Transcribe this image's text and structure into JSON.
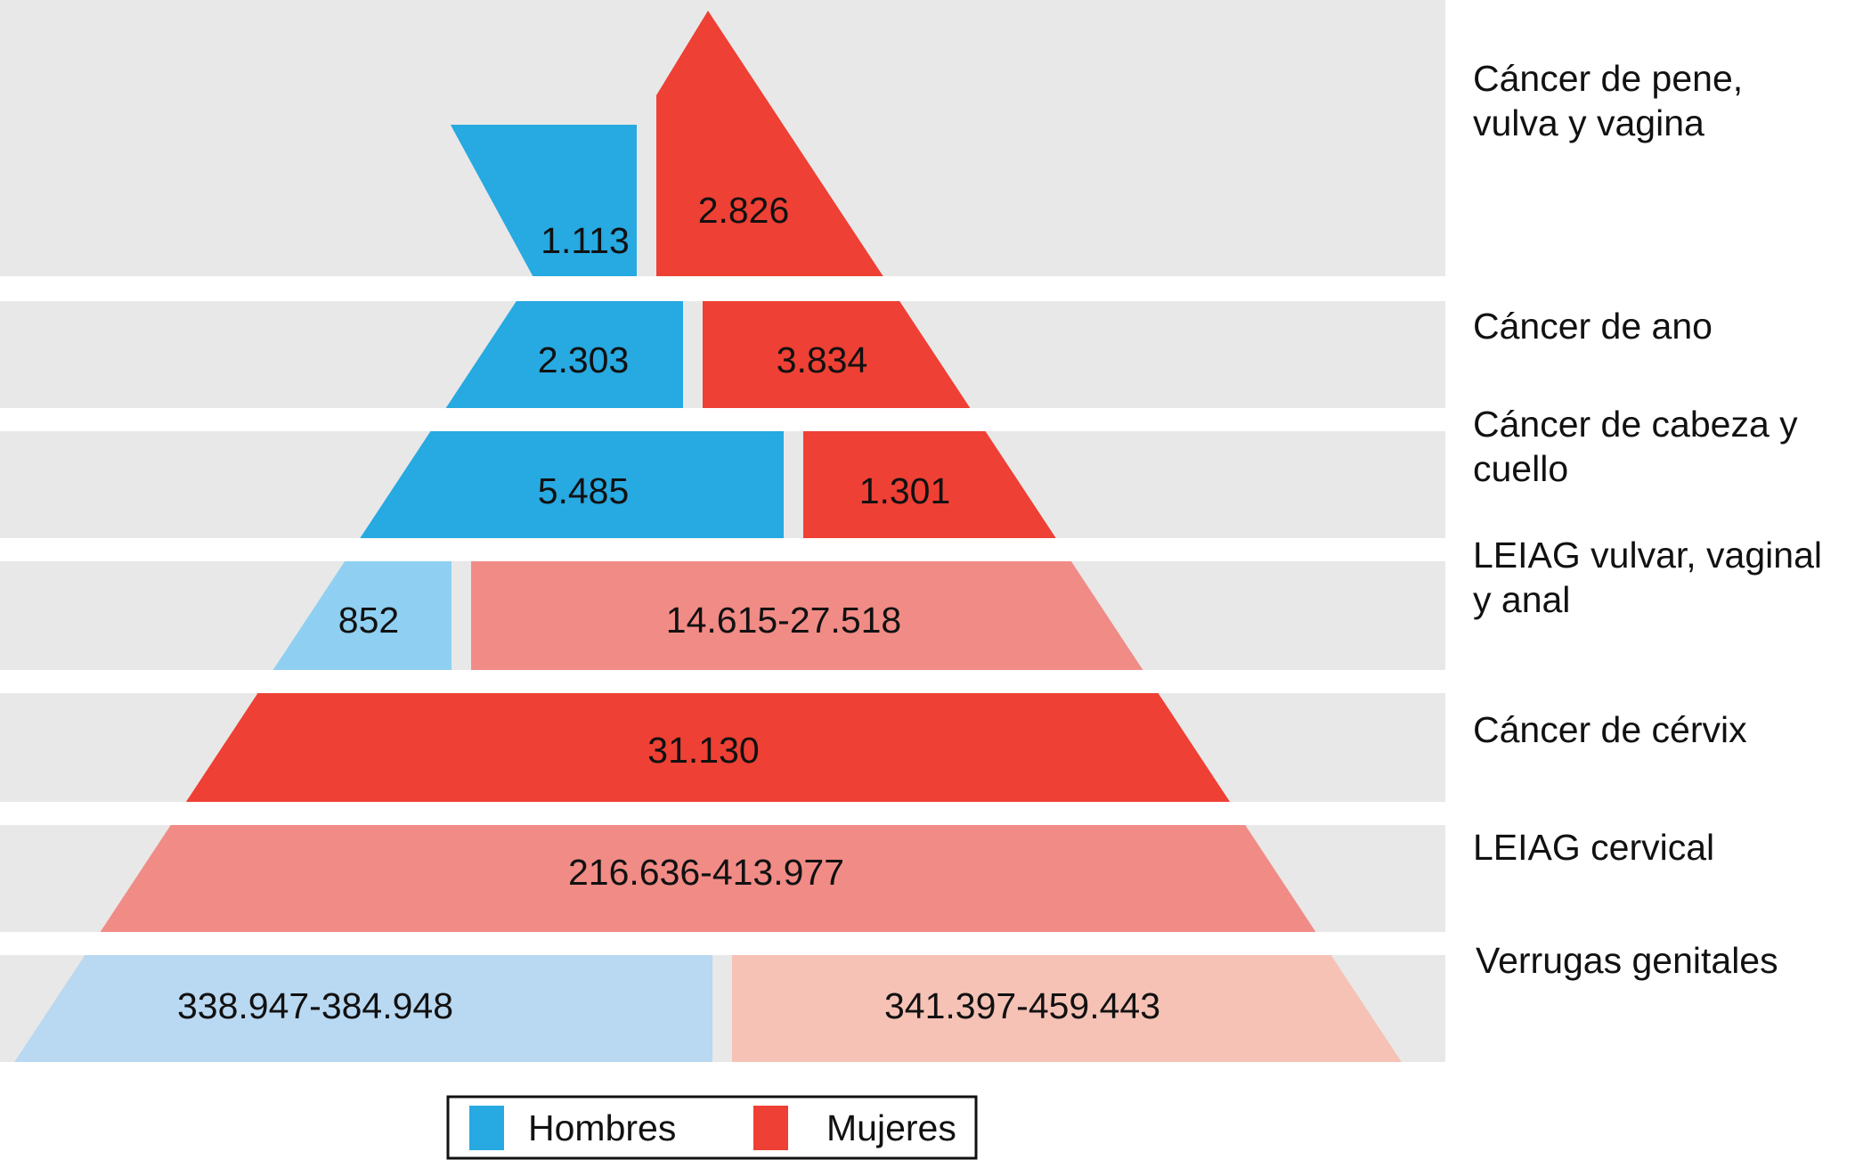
{
  "colors": {
    "band": "#e8e8e8",
    "hombres": "#27a9e1",
    "hombres_light": "#8fd0f2",
    "hombres_pale": "#b9d8f1",
    "mujeres": "#ee4034",
    "mujeres_light": "#f18b86",
    "mujeres_pale": "#f6c2b6"
  },
  "levels": [
    {
      "label": "Cáncer de pene,\nvulva y vagina",
      "hombres": "1.113",
      "mujeres": "2.826"
    },
    {
      "label": "Cáncer de ano",
      "hombres": "2.303",
      "mujeres": "3.834"
    },
    {
      "label": "Cáncer de cabeza y\ncuello",
      "hombres": "5.485",
      "mujeres": "1.301"
    },
    {
      "label": "LEIAG vulvar, vaginal\ny anal",
      "hombres": "852",
      "mujeres": "14.615-27.518"
    },
    {
      "label": "Cáncer de cérvix",
      "hombres": "",
      "mujeres": "31.130"
    },
    {
      "label": "LEIAG cervical",
      "hombres": "",
      "mujeres": "216.636-413.977"
    },
    {
      "label": "Verrugas genitales",
      "hombres": "338.947-384.948",
      "mujeres": "341.397-459.443"
    }
  ],
  "legend": {
    "hombres": "Hombres",
    "mujeres": "Mujeres"
  }
}
